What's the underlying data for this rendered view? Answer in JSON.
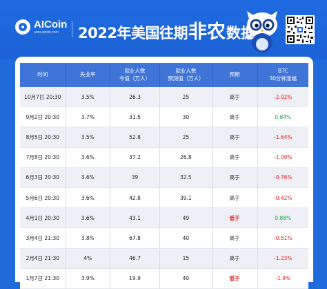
{
  "brand": {
    "name": "AICoin",
    "url": "www.aicoin.com"
  },
  "title": {
    "prefix": "2022年美国往期",
    "emphasis": "非农",
    "suffix": "数据"
  },
  "table": {
    "headers": [
      "时间",
      "失业率",
      "就业人数\n今值（万人）",
      "就业人数\n预测值（万人）",
      "预期",
      "BTC\n30分钟涨幅"
    ],
    "rows": [
      {
        "time": "10月7日 20:30",
        "rate": "3.5%",
        "jobs": "26.3",
        "forecast": "25",
        "expect": "高于",
        "expect_low": false,
        "btc": "-2.02%",
        "btc_sign": "neg"
      },
      {
        "time": "9月2日 20:30",
        "rate": "3.7%",
        "jobs": "31.5",
        "forecast": "30",
        "expect": "高于",
        "expect_low": false,
        "btc": "0.84%",
        "btc_sign": "pos"
      },
      {
        "time": "8月5日 20:30",
        "rate": "3.5%",
        "jobs": "52.8",
        "forecast": "25",
        "expect": "高于",
        "expect_low": false,
        "btc": "-1.64%",
        "btc_sign": "neg"
      },
      {
        "time": "7月8日 20:30",
        "rate": "3.6%",
        "jobs": "37.2",
        "forecast": "26.8",
        "expect": "高于",
        "expect_low": false,
        "btc": "-1.09%",
        "btc_sign": "neg"
      },
      {
        "time": "6月3日 20:30",
        "rate": "3.6%",
        "jobs": "39",
        "forecast": "32.5",
        "expect": "高于",
        "expect_low": false,
        "btc": "-0.76%",
        "btc_sign": "neg"
      },
      {
        "time": "5月6日 20:30",
        "rate": "3.6%",
        "jobs": "42.8",
        "forecast": "39.1",
        "expect": "高于",
        "expect_low": false,
        "btc": "-0.42%",
        "btc_sign": "neg"
      },
      {
        "time": "4月1日 20:30",
        "rate": "3.6%",
        "jobs": "43.1",
        "forecast": "49",
        "expect": "低于",
        "expect_low": true,
        "btc": "0.88%",
        "btc_sign": "pos"
      },
      {
        "time": "3月4日 21:30",
        "rate": "3.8%",
        "jobs": "67.8",
        "forecast": "40",
        "expect": "高于",
        "expect_low": false,
        "btc": "-0.51%",
        "btc_sign": "neg"
      },
      {
        "time": "2月4日 21:30",
        "rate": "4%",
        "jobs": "46.7",
        "forecast": "15",
        "expect": "高于",
        "expect_low": false,
        "btc": "-1.23%",
        "btc_sign": "neg"
      },
      {
        "time": "1月7日 21:30",
        "rate": "3.9%",
        "jobs": "19.9",
        "forecast": "40",
        "expect": "低于",
        "expect_low": true,
        "btc": "-1.9%",
        "btc_sign": "neg"
      }
    ]
  },
  "colors": {
    "background": "#1f6bdc",
    "header_row": "#3f74d8",
    "negative": "#e11b1b",
    "positive": "#13a84a",
    "expect_low": "#e11b1b"
  },
  "icons": {
    "logo": "aicoin-logo-icon",
    "mascot": "owl-mascot-icon",
    "qr": "qr-code-icon"
  }
}
